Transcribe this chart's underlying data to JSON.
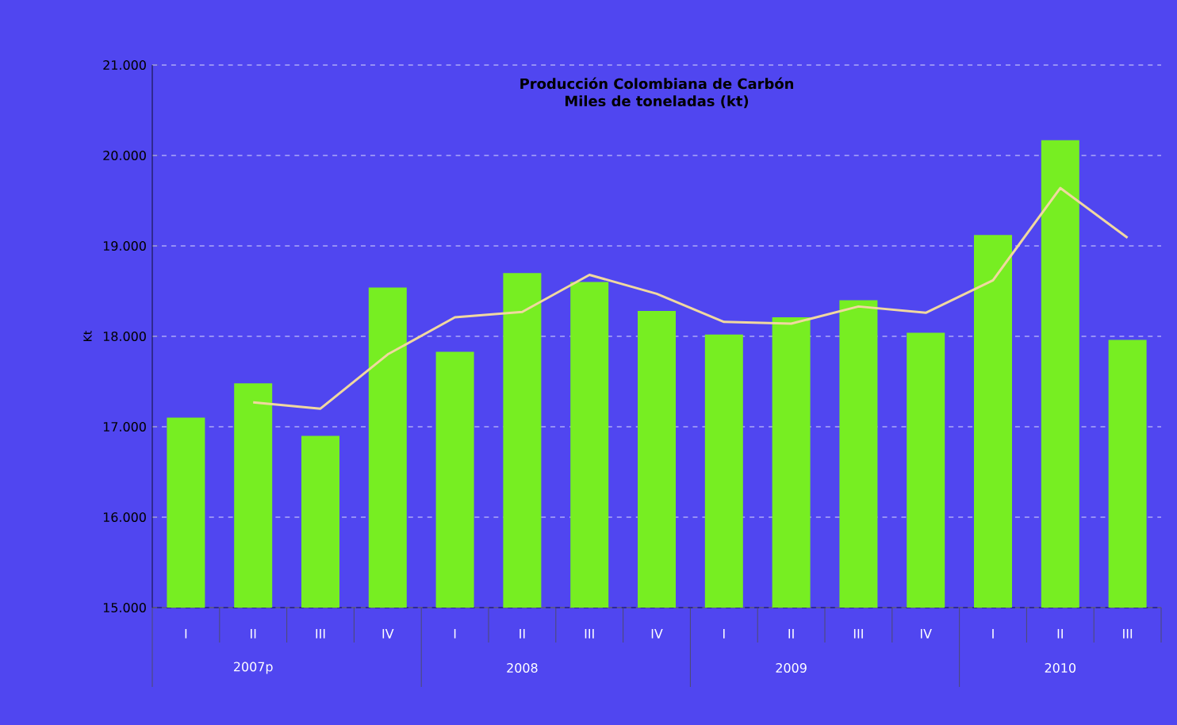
{
  "chart_data": {
    "type": "bar",
    "title": "Producción Colombiana de Carbón",
    "subtitle": "Miles de toneladas (kt)",
    "ylabel": "Kt",
    "categories": [
      "I",
      "II",
      "III",
      "IV",
      "I",
      "II",
      "III",
      "IV",
      "I",
      "II",
      "III",
      "IV",
      "I",
      "II",
      "III"
    ],
    "annotations": [
      "2007p",
      "2008",
      "2009",
      "2010"
    ],
    "series": [
      {
        "color": "#77ee22",
        "values": [
          17100,
          17480,
          16900,
          18540,
          17830,
          18700,
          18600,
          18280,
          18020,
          18210,
          18400,
          18040,
          19120,
          20170,
          17960
        ]
      },
      {
        "type": "line",
        "color": "#f0d8a0",
        "values": [
          null,
          17270,
          17200,
          17800,
          18210,
          18270,
          18680,
          18470,
          18160,
          18140,
          18330,
          18260,
          18620,
          19640,
          19090
        ]
      }
    ],
    "ylim": [
      15000,
      21000
    ],
    "yticks": [
      {
        "value": 15000,
        "label": "15.000"
      },
      {
        "value": 16000,
        "label": "16.000"
      },
      {
        "value": 17000,
        "label": "17.000"
      },
      {
        "value": 18000,
        "label": "18.000"
      },
      {
        "value": 19000,
        "label": "19.000"
      },
      {
        "value": 20000,
        "label": "20.000"
      },
      {
        "value": 21000,
        "label": "21.000"
      }
    ],
    "grid": "y"
  }
}
